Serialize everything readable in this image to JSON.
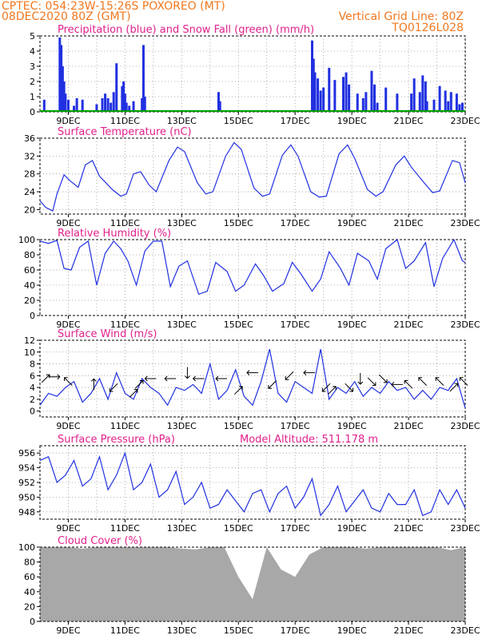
{
  "header": {
    "left_line1": "CPTEC:   054:23W-15:26S   POXOREO (MT)",
    "left_line2": "08DEC2020 80Z (GMT)",
    "right_line1": "Vertical Grid Line: 80Z",
    "right_line2": "TQ0126L028"
  },
  "colors": {
    "header": "#f07820",
    "title": "#e0208c",
    "line": "#2030e0",
    "precip": "#2030e0",
    "snow": "#00a000",
    "cloud": "#a8a8a8",
    "grid": "#999999",
    "wind_arrow": "#000000"
  },
  "x_axis": {
    "start": "08DEC",
    "days": 15,
    "tick_labels": [
      "9DEC",
      "11DEC",
      "13DEC",
      "15DEC",
      "17DEC",
      "19DEC",
      "21DEC",
      "23DEC"
    ]
  },
  "chart_data": [
    {
      "type": "bar",
      "title": "Precipitation (blue) and Snow Fall (green) (mm/h)",
      "ylim": [
        0,
        5
      ],
      "yticks": [
        "0",
        "1",
        "2",
        "3",
        "4",
        "5"
      ],
      "grid": true,
      "series": [
        {
          "name": "Precipitation",
          "color": "#2030e0",
          "x_days": [
            0.15,
            0.7,
            0.75,
            0.8,
            0.85,
            0.9,
            1.0,
            1.2,
            1.3,
            1.5,
            2.0,
            2.2,
            2.3,
            2.4,
            2.5,
            2.6,
            2.7,
            2.9,
            2.95,
            3.0,
            3.05,
            3.15,
            3.3,
            3.6,
            3.65,
            3.7,
            6.3,
            6.35,
            9.6,
            9.65,
            9.7,
            9.8,
            9.9,
            10.0,
            10.2,
            10.4,
            10.7,
            10.8,
            10.9,
            11.2,
            11.4,
            11.5,
            11.7,
            11.8,
            11.9,
            12.2,
            12.6,
            13.1,
            13.2,
            13.4,
            13.5,
            13.6,
            13.65,
            13.9,
            14.1,
            14.3,
            14.4,
            14.5,
            14.7,
            14.8,
            14.9
          ],
          "values": [
            0.8,
            4.9,
            4.4,
            3.0,
            2.0,
            1.2,
            0.8,
            0.4,
            0.9,
            0.8,
            0.5,
            0.9,
            1.2,
            0.9,
            0.6,
            1.3,
            3.2,
            1.7,
            2.0,
            1.2,
            0.6,
            0.4,
            0.7,
            0.9,
            4.4,
            1.0,
            1.3,
            0.7,
            4.7,
            3.5,
            2.6,
            2.2,
            1.4,
            1.6,
            2.9,
            2.1,
            2.3,
            2.6,
            1.8,
            1.2,
            0.9,
            1.3,
            2.7,
            1.8,
            0.6,
            1.6,
            1.2,
            1.2,
            2.2,
            1.3,
            2.4,
            2.0,
            0.7,
            0.8,
            1.7,
            1.4,
            0.7,
            1.3,
            1.2,
            0.5,
            0.6
          ]
        },
        {
          "name": "Snow Fall",
          "color": "#00a000",
          "x_days": [],
          "values": []
        }
      ]
    },
    {
      "type": "line",
      "title": "Surface Temperature (nC)",
      "ylim": [
        19,
        36
      ],
      "yticks": [
        "20",
        "24",
        "28",
        "32",
        "36"
      ],
      "grid": true,
      "x_days": [
        0,
        0.2,
        0.45,
        0.6,
        0.85,
        1.05,
        1.35,
        1.6,
        1.85,
        2.1,
        2.55,
        2.85,
        3.05,
        3.3,
        3.55,
        3.85,
        4.1,
        4.55,
        4.85,
        5.1,
        5.55,
        5.85,
        6.1,
        6.55,
        6.85,
        7.1,
        7.55,
        7.85,
        8.1,
        8.55,
        8.85,
        9.1,
        9.55,
        9.85,
        10.1,
        10.55,
        10.85,
        11.1,
        11.55,
        11.85,
        12.1,
        12.55,
        12.85,
        13.1,
        13.55,
        13.85,
        14.1,
        14.55,
        14.8,
        15.0
      ],
      "values": [
        22,
        20.5,
        19.7,
        23.5,
        27.8,
        26.5,
        25,
        30,
        31,
        27.5,
        24.5,
        23,
        23.5,
        28,
        28.5,
        25.5,
        24,
        31,
        34,
        33,
        26,
        23.5,
        24,
        32,
        35,
        33.5,
        24.8,
        23,
        23.5,
        32.2,
        34.5,
        32,
        24,
        22.8,
        23,
        32.5,
        34.5,
        31.5,
        24.5,
        23,
        24,
        30,
        32,
        29.5,
        26,
        23.8,
        24.2,
        31,
        30.5,
        26
      ]
    },
    {
      "type": "line",
      "title": "Relative Humidity (%)",
      "ylim": [
        0,
        100
      ],
      "yticks": [
        "0",
        "20",
        "40",
        "60",
        "80",
        "100"
      ],
      "grid": true,
      "x_days": [
        0,
        0.3,
        0.6,
        0.85,
        1.1,
        1.4,
        1.7,
        2.0,
        2.3,
        2.6,
        2.85,
        3.1,
        3.4,
        3.7,
        4.0,
        4.3,
        4.6,
        4.9,
        5.2,
        5.6,
        5.9,
        6.2,
        6.6,
        6.9,
        7.2,
        7.6,
        7.9,
        8.2,
        8.6,
        8.9,
        9.2,
        9.6,
        9.9,
        10.2,
        10.6,
        10.9,
        11.2,
        11.6,
        11.9,
        12.2,
        12.6,
        12.9,
        13.2,
        13.6,
        13.9,
        14.2,
        14.6,
        14.9,
        15.0
      ],
      "values": [
        98,
        95,
        99,
        62,
        60,
        90,
        98,
        40,
        82,
        98,
        88,
        72,
        40,
        85,
        98,
        98,
        38,
        65,
        72,
        28,
        32,
        70,
        58,
        32,
        40,
        68,
        52,
        32,
        42,
        70,
        55,
        32,
        48,
        84,
        62,
        40,
        82,
        72,
        48,
        88,
        100,
        62,
        72,
        96,
        38,
        75,
        100,
        72,
        70
      ]
    },
    {
      "type": "line",
      "title": "Surface Wind (m/s)",
      "ylim": [
        -1,
        12
      ],
      "yticks": [
        "0",
        "2",
        "4",
        "6",
        "8",
        "10",
        "12"
      ],
      "grid": true,
      "x_days": [
        0,
        0.3,
        0.6,
        0.9,
        1.2,
        1.5,
        1.8,
        2.1,
        2.4,
        2.7,
        3.0,
        3.3,
        3.6,
        3.9,
        4.2,
        4.5,
        4.8,
        5.1,
        5.4,
        5.7,
        6.0,
        6.3,
        6.6,
        6.9,
        7.2,
        7.5,
        7.8,
        8.1,
        8.4,
        8.7,
        9.0,
        9.3,
        9.6,
        9.9,
        10.2,
        10.5,
        10.8,
        11.1,
        11.4,
        11.7,
        12.0,
        12.3,
        12.6,
        12.9,
        13.2,
        13.5,
        13.8,
        14.1,
        14.4,
        14.7,
        15.0
      ],
      "values": [
        1,
        3,
        2.5,
        4,
        5,
        1.5,
        3,
        5.5,
        2,
        6.5,
        3,
        2,
        5.5,
        4,
        3,
        1,
        4,
        3.5,
        4.5,
        3,
        8,
        2,
        3.5,
        7,
        2.5,
        1,
        5,
        10.5,
        3,
        1.5,
        5,
        4,
        3,
        10.5,
        2,
        4,
        3,
        5,
        2.5,
        4,
        3,
        5,
        3.5,
        4,
        2,
        3.5,
        2,
        4,
        3.5,
        5.5,
        0.5
      ],
      "arrows": [
        {
          "day": 0.2,
          "speed": 5.5,
          "dir": "NE"
        },
        {
          "day": 0.5,
          "speed": 5.8,
          "dir": "E"
        },
        {
          "day": 1.0,
          "speed": 5.0,
          "dir": "NW"
        },
        {
          "day": 1.9,
          "speed": 4.5,
          "dir": "N"
        },
        {
          "day": 2.6,
          "speed": 4.0,
          "dir": "SW"
        },
        {
          "day": 3.3,
          "speed": 3.0,
          "dir": "NE"
        },
        {
          "day": 3.5,
          "speed": 4.5,
          "dir": "NE"
        },
        {
          "day": 3.9,
          "speed": 5.5,
          "dir": "W"
        },
        {
          "day": 4.6,
          "speed": 5.5,
          "dir": "W"
        },
        {
          "day": 5.2,
          "speed": 6.5,
          "dir": "S"
        },
        {
          "day": 5.6,
          "speed": 5.5,
          "dir": "W"
        },
        {
          "day": 6.4,
          "speed": 5.5,
          "dir": "W"
        },
        {
          "day": 7.0,
          "speed": 3.5,
          "dir": "NE"
        },
        {
          "day": 7.5,
          "speed": 6.5,
          "dir": "W"
        },
        {
          "day": 8.2,
          "speed": 4.5,
          "dir": "SW"
        },
        {
          "day": 8.8,
          "speed": 6.0,
          "dir": "SW"
        },
        {
          "day": 9.5,
          "speed": 6.5,
          "dir": "W"
        },
        {
          "day": 10.1,
          "speed": 4.0,
          "dir": "SW"
        },
        {
          "day": 10.3,
          "speed": 3.5,
          "dir": "NE"
        },
        {
          "day": 10.9,
          "speed": 4.0,
          "dir": "SE"
        },
        {
          "day": 11.3,
          "speed": 5.5,
          "dir": "S"
        },
        {
          "day": 11.7,
          "speed": 5.0,
          "dir": "SE"
        },
        {
          "day": 12.1,
          "speed": 5.5,
          "dir": "SE"
        },
        {
          "day": 12.6,
          "speed": 4.5,
          "dir": "W"
        },
        {
          "day": 13.0,
          "speed": 4.5,
          "dir": "NW"
        },
        {
          "day": 13.5,
          "speed": 5.0,
          "dir": "NW"
        },
        {
          "day": 14.1,
          "speed": 5.0,
          "dir": "NW"
        },
        {
          "day": 14.6,
          "speed": 4.0,
          "dir": "NE"
        },
        {
          "day": 14.95,
          "speed": 5.0,
          "dir": "NW"
        }
      ]
    },
    {
      "type": "line",
      "title": "Surface Pressure (hPa)",
      "subtitle": "Model Altitude: 511.178 m",
      "ylim": [
        947,
        957
      ],
      "yticks": [
        "948",
        "950",
        "952",
        "954",
        "956"
      ],
      "grid": true,
      "x_days": [
        0,
        0.3,
        0.6,
        0.9,
        1.2,
        1.5,
        1.8,
        2.1,
        2.4,
        2.7,
        3.0,
        3.3,
        3.6,
        3.9,
        4.2,
        4.5,
        4.8,
        5.1,
        5.4,
        5.7,
        6.0,
        6.3,
        6.6,
        6.9,
        7.2,
        7.5,
        7.8,
        8.1,
        8.4,
        8.7,
        9.0,
        9.3,
        9.6,
        9.9,
        10.2,
        10.5,
        10.8,
        11.1,
        11.4,
        11.7,
        12.0,
        12.3,
        12.6,
        12.9,
        13.2,
        13.5,
        13.8,
        14.1,
        14.4,
        14.7,
        15.0
      ],
      "values": [
        955,
        955.5,
        952,
        953,
        955,
        951.5,
        952.5,
        955.5,
        951,
        953,
        956,
        951,
        952,
        954.5,
        950,
        951,
        953.5,
        949,
        950,
        952,
        948.5,
        949,
        951,
        949.5,
        948,
        950.5,
        951,
        948,
        950.5,
        951.5,
        948.5,
        950,
        952.5,
        947.5,
        949,
        951.5,
        948,
        949.5,
        951,
        948.5,
        948,
        950.5,
        949,
        949,
        951,
        947.5,
        948,
        951,
        949,
        951,
        948.5
      ]
    },
    {
      "type": "bar",
      "title": "Cloud Cover (%)",
      "ylim": [
        0,
        100
      ],
      "yticks": [
        "0",
        "20",
        "40",
        "60",
        "80",
        "100"
      ],
      "grid": false,
      "x_days": [
        0,
        0.5,
        1.0,
        1.5,
        2.0,
        2.5,
        3.0,
        3.5,
        4.0,
        4.5,
        5.0,
        5.5,
        6.0,
        6.5,
        7.0,
        7.5,
        8.0,
        8.5,
        9.0,
        9.5,
        10.0,
        10.5,
        11.0,
        11.5,
        12.0,
        12.5,
        13.0,
        13.5,
        14.0,
        14.5,
        15.0
      ],
      "values": [
        100,
        100,
        100,
        98,
        100,
        100,
        100,
        100,
        100,
        100,
        98,
        97,
        100,
        100,
        60,
        30,
        100,
        70,
        60,
        90,
        100,
        100,
        100,
        98,
        100,
        100,
        100,
        100,
        100,
        96,
        100
      ]
    }
  ]
}
